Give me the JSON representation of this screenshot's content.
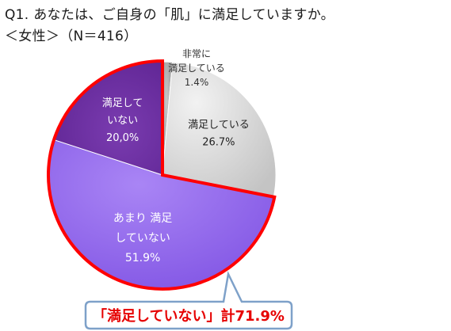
{
  "title": "Q1. あなたは、ご自身の「肌」に満足していますか。",
  "subtitle": "＜女性＞（N＝416）",
  "chart_data": {
    "type": "pie",
    "start": "12 o'clock",
    "direction": "clockwise",
    "slices": [
      {
        "lines": [
          "非常に",
          "満足している"
        ],
        "value": 1.4,
        "value_label": "1.4%",
        "color": "#a6a6a6"
      },
      {
        "lines": [
          "満足している"
        ],
        "value": 26.7,
        "value_label": "26.7%",
        "color": "#d9d9d9"
      },
      {
        "lines": [
          "あまり 満足",
          "していない"
        ],
        "value": 51.9,
        "value_label": "51.9%",
        "color": "#9b6ff0"
      },
      {
        "lines": [
          "満足して",
          "いない"
        ],
        "value": 20.0,
        "value_label": "20,0%",
        "color": "#7030a0"
      }
    ],
    "highlight": {
      "slices": [
        2,
        3
      ],
      "outline_color": "#ff0000",
      "callout_text": "「満足していない」計71.9%"
    }
  }
}
